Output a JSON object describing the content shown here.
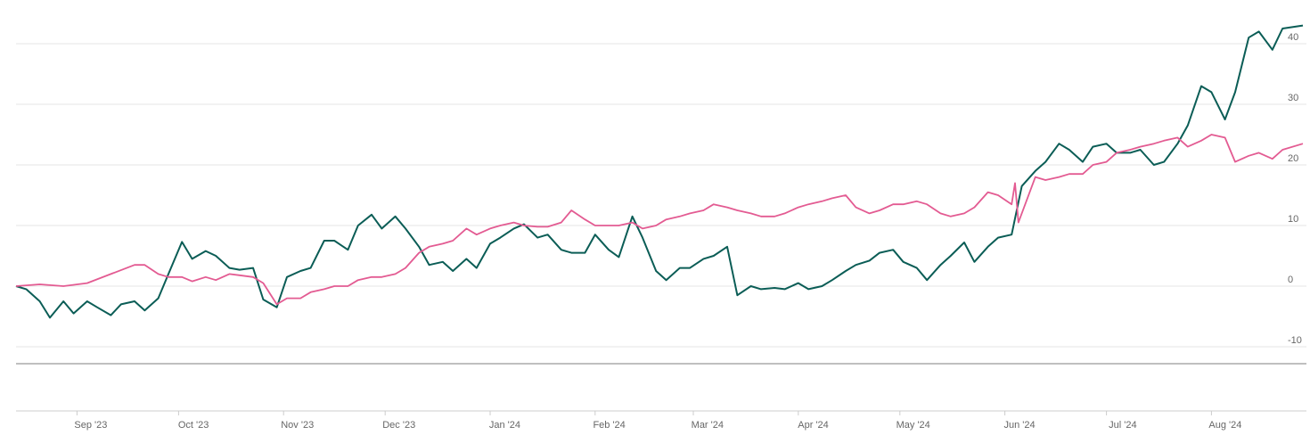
{
  "chart_data": {
    "type": "line",
    "title": "",
    "xlabel": "",
    "ylabel": "",
    "x_range": [
      "2023-08-14",
      "2024-08-28"
    ],
    "ylim": [
      -10,
      44
    ],
    "y_ticks": [
      -10,
      0,
      10,
      20,
      30,
      40
    ],
    "y_tick_labels": [
      "-10",
      "0",
      "10",
      "20",
      "30",
      "40"
    ],
    "x_tick_labels": [
      {
        "label": "Sep '23",
        "date": "2023-09-01"
      },
      {
        "label": "Oct '23",
        "date": "2023-10-01"
      },
      {
        "label": "Nov '23",
        "date": "2023-11-01"
      },
      {
        "label": "Dec '23",
        "date": "2023-12-01"
      },
      {
        "label": "Jan '24",
        "date": "2024-01-01"
      },
      {
        "label": "Feb '24",
        "date": "2024-02-01"
      },
      {
        "label": "Mar '24",
        "date": "2024-03-01"
      },
      {
        "label": "Apr '24",
        "date": "2024-04-01"
      },
      {
        "label": "May '24",
        "date": "2024-05-01"
      },
      {
        "label": "Jun '24",
        "date": "2024-06-01"
      },
      {
        "label": "Jul '24",
        "date": "2024-07-01"
      },
      {
        "label": "Aug '24",
        "date": "2024-08-01"
      }
    ],
    "grid": true,
    "legend": "none",
    "series": [
      {
        "color": "#0b5d56",
        "points": [
          [
            "2023-08-14",
            0
          ],
          [
            "2023-08-17",
            -0.5
          ],
          [
            "2023-08-21",
            -2.5
          ],
          [
            "2023-08-24",
            -5.2
          ],
          [
            "2023-08-28",
            -2.5
          ],
          [
            "2023-08-31",
            -4.5
          ],
          [
            "2023-09-04",
            -2.5
          ],
          [
            "2023-09-07",
            -3.5
          ],
          [
            "2023-09-11",
            -4.8
          ],
          [
            "2023-09-14",
            -3
          ],
          [
            "2023-09-18",
            -2.5
          ],
          [
            "2023-09-21",
            -4
          ],
          [
            "2023-09-25",
            -2
          ],
          [
            "2023-09-28",
            2
          ],
          [
            "2023-10-02",
            7.3
          ],
          [
            "2023-10-05",
            4.5
          ],
          [
            "2023-10-09",
            5.8
          ],
          [
            "2023-10-12",
            5
          ],
          [
            "2023-10-16",
            3
          ],
          [
            "2023-10-19",
            2.7
          ],
          [
            "2023-10-23",
            3
          ],
          [
            "2023-10-26",
            -2.2
          ],
          [
            "2023-10-30",
            -3.5
          ],
          [
            "2023-11-02",
            1.5
          ],
          [
            "2023-11-06",
            2.5
          ],
          [
            "2023-11-09",
            3
          ],
          [
            "2023-11-13",
            7.5
          ],
          [
            "2023-11-16",
            7.5
          ],
          [
            "2023-11-20",
            6
          ],
          [
            "2023-11-23",
            10
          ],
          [
            "2023-11-27",
            11.8
          ],
          [
            "2023-11-30",
            9.5
          ],
          [
            "2023-12-04",
            11.5
          ],
          [
            "2023-12-07",
            9.5
          ],
          [
            "2023-12-11",
            6.5
          ],
          [
            "2023-12-14",
            3.5
          ],
          [
            "2023-12-18",
            4
          ],
          [
            "2023-12-21",
            2.5
          ],
          [
            "2023-12-25",
            4.5
          ],
          [
            "2023-12-28",
            3
          ],
          [
            "2024-01-01",
            7
          ],
          [
            "2024-01-04",
            8
          ],
          [
            "2024-01-08",
            9.5
          ],
          [
            "2024-01-11",
            10.2
          ],
          [
            "2024-01-15",
            8
          ],
          [
            "2024-01-18",
            8.5
          ],
          [
            "2024-01-22",
            6
          ],
          [
            "2024-01-25",
            5.5
          ],
          [
            "2024-01-29",
            5.5
          ],
          [
            "2024-02-01",
            8.5
          ],
          [
            "2024-02-05",
            6
          ],
          [
            "2024-02-08",
            4.8
          ],
          [
            "2024-02-12",
            11.5
          ],
          [
            "2024-02-15",
            8
          ],
          [
            "2024-02-19",
            2.5
          ],
          [
            "2024-02-22",
            1
          ],
          [
            "2024-02-26",
            3
          ],
          [
            "2024-02-29",
            3
          ],
          [
            "2024-03-04",
            4.5
          ],
          [
            "2024-03-07",
            5
          ],
          [
            "2024-03-11",
            6.5
          ],
          [
            "2024-03-14",
            -1.5
          ],
          [
            "2024-03-18",
            0
          ],
          [
            "2024-03-21",
            -0.5
          ],
          [
            "2024-03-25",
            -0.3
          ],
          [
            "2024-03-28",
            -0.5
          ],
          [
            "2024-04-01",
            0.5
          ],
          [
            "2024-04-04",
            -0.5
          ],
          [
            "2024-04-08",
            0
          ],
          [
            "2024-04-11",
            1
          ],
          [
            "2024-04-15",
            2.5
          ],
          [
            "2024-04-18",
            3.5
          ],
          [
            "2024-04-22",
            4.2
          ],
          [
            "2024-04-25",
            5.5
          ],
          [
            "2024-04-29",
            6
          ],
          [
            "2024-05-02",
            4
          ],
          [
            "2024-05-06",
            3
          ],
          [
            "2024-05-09",
            1
          ],
          [
            "2024-05-13",
            3.5
          ],
          [
            "2024-05-16",
            5
          ],
          [
            "2024-05-20",
            7.2
          ],
          [
            "2024-05-23",
            4
          ],
          [
            "2024-05-27",
            6.5
          ],
          [
            "2024-05-30",
            8
          ],
          [
            "2024-06-03",
            8.5
          ],
          [
            "2024-06-06",
            16.5
          ],
          [
            "2024-06-10",
            19
          ],
          [
            "2024-06-13",
            20.5
          ],
          [
            "2024-06-17",
            23.5
          ],
          [
            "2024-06-20",
            22.5
          ],
          [
            "2024-06-24",
            20.5
          ],
          [
            "2024-06-27",
            23
          ],
          [
            "2024-07-01",
            23.5
          ],
          [
            "2024-07-04",
            22
          ],
          [
            "2024-07-08",
            22
          ],
          [
            "2024-07-11",
            22.5
          ],
          [
            "2024-07-15",
            20
          ],
          [
            "2024-07-18",
            20.5
          ],
          [
            "2024-07-22",
            23.5
          ],
          [
            "2024-07-25",
            26.5
          ],
          [
            "2024-07-29",
            33
          ],
          [
            "2024-08-01",
            32
          ],
          [
            "2024-08-05",
            27.5
          ],
          [
            "2024-08-08",
            32
          ],
          [
            "2024-08-12",
            41
          ],
          [
            "2024-08-15",
            42
          ],
          [
            "2024-08-19",
            39
          ],
          [
            "2024-08-22",
            42.5
          ],
          [
            "2024-08-28",
            43
          ]
        ]
      },
      {
        "color": "#e35b92",
        "points": [
          [
            "2023-08-14",
            0
          ],
          [
            "2023-08-21",
            0.3
          ],
          [
            "2023-08-28",
            0
          ],
          [
            "2023-09-04",
            0.5
          ],
          [
            "2023-09-11",
            2
          ],
          [
            "2023-09-18",
            3.5
          ],
          [
            "2023-09-21",
            3.5
          ],
          [
            "2023-09-25",
            2
          ],
          [
            "2023-09-28",
            1.5
          ],
          [
            "2023-10-02",
            1.5
          ],
          [
            "2023-10-05",
            0.8
          ],
          [
            "2023-10-09",
            1.5
          ],
          [
            "2023-10-12",
            1
          ],
          [
            "2023-10-16",
            2
          ],
          [
            "2023-10-19",
            1.8
          ],
          [
            "2023-10-23",
            1.5
          ],
          [
            "2023-10-26",
            0.5
          ],
          [
            "2023-10-30",
            -3
          ],
          [
            "2023-11-02",
            -2
          ],
          [
            "2023-11-06",
            -2
          ],
          [
            "2023-11-09",
            -1
          ],
          [
            "2023-11-13",
            -0.5
          ],
          [
            "2023-11-16",
            0
          ],
          [
            "2023-11-20",
            0
          ],
          [
            "2023-11-23",
            1
          ],
          [
            "2023-11-27",
            1.5
          ],
          [
            "2023-11-30",
            1.5
          ],
          [
            "2023-12-04",
            2
          ],
          [
            "2023-12-07",
            3
          ],
          [
            "2023-12-11",
            5.5
          ],
          [
            "2023-12-14",
            6.5
          ],
          [
            "2023-12-18",
            7
          ],
          [
            "2023-12-21",
            7.5
          ],
          [
            "2023-12-25",
            9.5
          ],
          [
            "2023-12-28",
            8.5
          ],
          [
            "2024-01-01",
            9.5
          ],
          [
            "2024-01-04",
            10
          ],
          [
            "2024-01-08",
            10.5
          ],
          [
            "2024-01-11",
            10
          ],
          [
            "2024-01-15",
            9.8
          ],
          [
            "2024-01-18",
            9.8
          ],
          [
            "2024-01-22",
            10.5
          ],
          [
            "2024-01-25",
            12.5
          ],
          [
            "2024-01-29",
            11
          ],
          [
            "2024-02-01",
            10
          ],
          [
            "2024-02-05",
            10
          ],
          [
            "2024-02-08",
            10
          ],
          [
            "2024-02-12",
            10.5
          ],
          [
            "2024-02-15",
            9.5
          ],
          [
            "2024-02-19",
            10
          ],
          [
            "2024-02-22",
            11
          ],
          [
            "2024-02-26",
            11.5
          ],
          [
            "2024-02-29",
            12
          ],
          [
            "2024-03-04",
            12.5
          ],
          [
            "2024-03-07",
            13.5
          ],
          [
            "2024-03-11",
            13
          ],
          [
            "2024-03-14",
            12.5
          ],
          [
            "2024-03-18",
            12
          ],
          [
            "2024-03-21",
            11.5
          ],
          [
            "2024-03-25",
            11.5
          ],
          [
            "2024-03-28",
            12
          ],
          [
            "2024-04-01",
            13
          ],
          [
            "2024-04-04",
            13.5
          ],
          [
            "2024-04-08",
            14
          ],
          [
            "2024-04-11",
            14.5
          ],
          [
            "2024-04-15",
            15
          ],
          [
            "2024-04-18",
            13
          ],
          [
            "2024-04-22",
            12
          ],
          [
            "2024-04-25",
            12.5
          ],
          [
            "2024-04-29",
            13.5
          ],
          [
            "2024-05-02",
            13.5
          ],
          [
            "2024-05-06",
            14
          ],
          [
            "2024-05-09",
            13.5
          ],
          [
            "2024-05-13",
            12
          ],
          [
            "2024-05-16",
            11.5
          ],
          [
            "2024-05-20",
            12
          ],
          [
            "2024-05-23",
            13
          ],
          [
            "2024-05-27",
            15.5
          ],
          [
            "2024-05-30",
            15
          ],
          [
            "2024-06-03",
            13.5
          ],
          [
            "2024-06-04",
            17
          ],
          [
            "2024-06-05",
            10.5
          ],
          [
            "2024-06-10",
            18
          ],
          [
            "2024-06-13",
            17.5
          ],
          [
            "2024-06-17",
            18
          ],
          [
            "2024-06-20",
            18.5
          ],
          [
            "2024-06-24",
            18.5
          ],
          [
            "2024-06-27",
            20
          ],
          [
            "2024-07-01",
            20.5
          ],
          [
            "2024-07-04",
            22
          ],
          [
            "2024-07-08",
            22.5
          ],
          [
            "2024-07-11",
            23
          ],
          [
            "2024-07-15",
            23.5
          ],
          [
            "2024-07-18",
            24
          ],
          [
            "2024-07-22",
            24.5
          ],
          [
            "2024-07-25",
            23
          ],
          [
            "2024-07-29",
            24
          ],
          [
            "2024-08-01",
            25
          ],
          [
            "2024-08-05",
            24.5
          ],
          [
            "2024-08-08",
            20.5
          ],
          [
            "2024-08-12",
            21.5
          ],
          [
            "2024-08-15",
            22
          ],
          [
            "2024-08-19",
            21
          ],
          [
            "2024-08-22",
            22.5
          ],
          [
            "2024-08-28",
            23.5
          ]
        ]
      }
    ]
  }
}
